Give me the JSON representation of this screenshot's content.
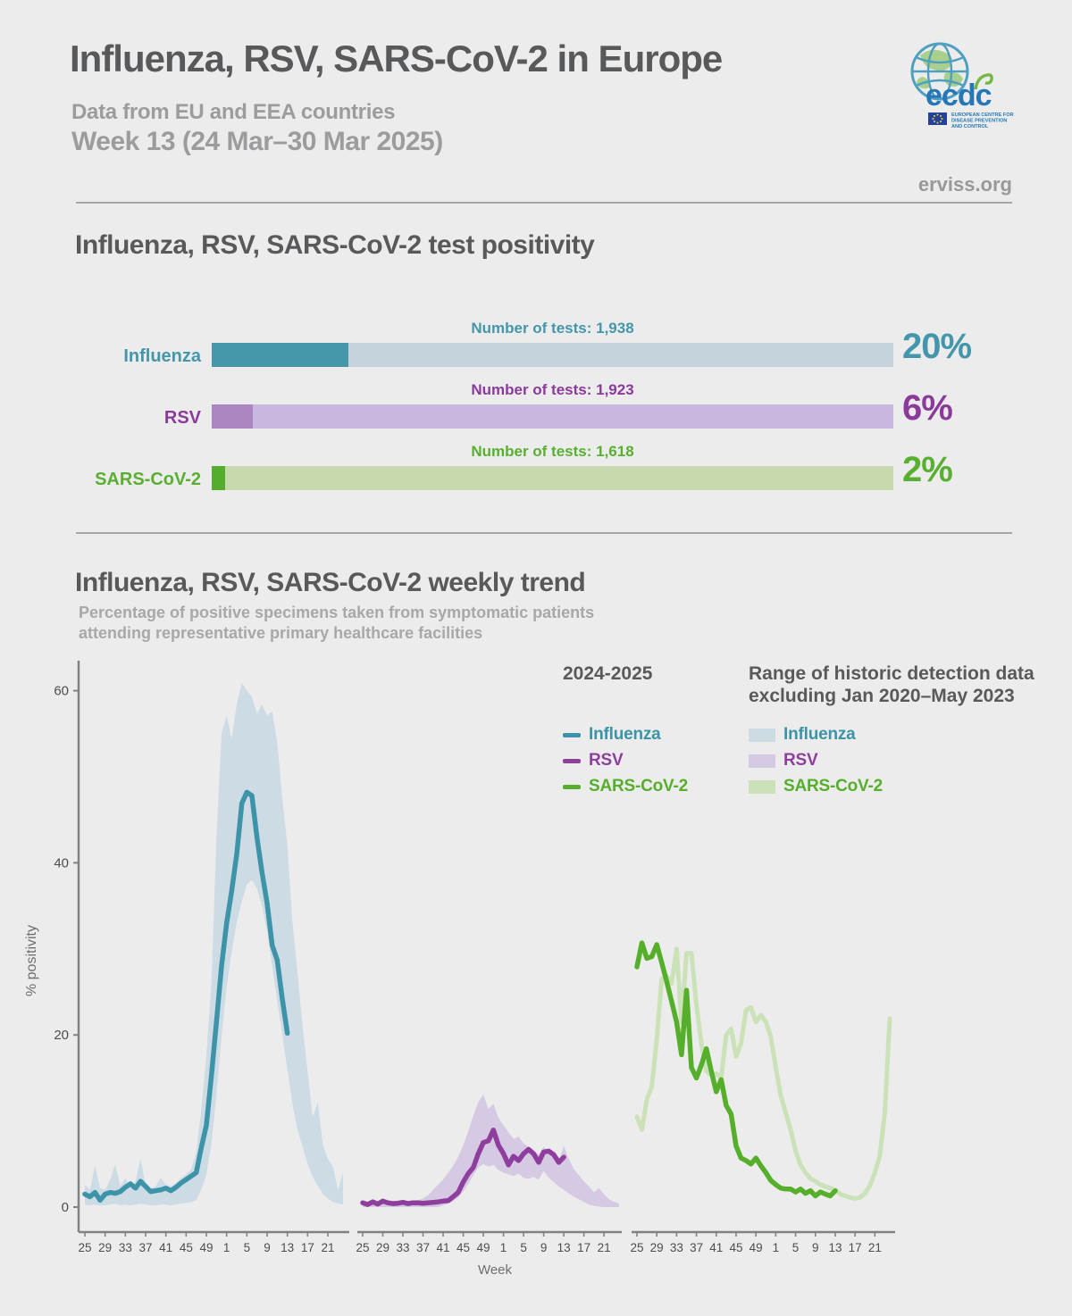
{
  "header": {
    "title": "Influenza, RSV, SARS-CoV-2 in Europe",
    "subtitle": "Data from EU and EEA countries",
    "week_line": "Week 13 (24 Mar–30 Mar 2025)",
    "site": "erviss.org",
    "logo": {
      "text": "ecdc",
      "org_lines": [
        "EUROPEAN CENTRE FOR",
        "DISEASE PREVENTION",
        "AND CONTROL"
      ]
    }
  },
  "positivity": {
    "heading": "Influenza, RSV, SARS-CoV-2 test positivity",
    "rows": [
      {
        "label": "Influenza",
        "tests_label": "Number of tests: 1,938",
        "percent": 20,
        "percent_label": "20%",
        "fill": "#4797AB",
        "track": "#C5D3DD",
        "text_color": "#4496AA"
      },
      {
        "label": "RSV",
        "tests_label": "Number of tests: 1,923",
        "percent": 6,
        "percent_label": "6%",
        "fill": "#AC85C3",
        "track": "#C9B8DD",
        "text_color": "#8B3A9B"
      },
      {
        "label": "SARS-CoV-2",
        "tests_label": "Number of tests: 1,618",
        "percent": 2,
        "percent_label": "2%",
        "fill": "#55AD2D",
        "track": "#C7DAAE",
        "text_color": "#58AF30"
      }
    ]
  },
  "trend": {
    "heading": "Influenza, RSV, SARS-CoV-2 weekly trend",
    "subtitle_line1": "Percentage of positive specimens taken from symptomatic patients",
    "subtitle_line2": "attending representative primary healthcare facilities",
    "legend_current_title": "2024-2025",
    "legend_hist_title_line1": "Range of historic detection data",
    "legend_hist_title_line2": "excluding Jan 2020–May 2023"
  },
  "colors": {
    "background": "#ECECEC",
    "heading": "#58595B",
    "muted": "#9B9C9E",
    "axis": "#808285",
    "tick_text": "#4D4D4F"
  },
  "chart_data": {
    "type": "line",
    "title": "Influenza, RSV, SARS-CoV-2 weekly trend",
    "ylabel": "% positivity",
    "xlabel": "Week",
    "ylim": [
      0,
      63
    ],
    "yticks": [
      0,
      20,
      40,
      60
    ],
    "week_tick_labels": [
      25,
      29,
      33,
      37,
      41,
      45,
      49,
      1,
      5,
      9,
      13,
      17,
      21
    ],
    "weeks_start": 25,
    "weeks_per_panel": 52,
    "current_season_weeks": "week 25 (2024) through week 13 (2025)",
    "panels": [
      {
        "virus": "Influenza",
        "line_color": "#3D93A8",
        "band_color": "#CDDBE5",
        "current": [
          1.5,
          1.2,
          1.7,
          0.8,
          1.5,
          1.7,
          1.6,
          1.8,
          2.3,
          2.7,
          2.2,
          3.0,
          2.4,
          1.8,
          1.9,
          2.0,
          2.2,
          1.9,
          2.3,
          2.8,
          3.2,
          3.6,
          4.0,
          6.9,
          9.5,
          15.3,
          21.5,
          28.0,
          33.0,
          36.7,
          41.0,
          46.9,
          48.2,
          47.8,
          42.9,
          38.9,
          35.3,
          30.4,
          28.7,
          24.2,
          20.2
        ],
        "hist_upper": [
          2.6,
          2.0,
          4.8,
          2.2,
          2.0,
          3.2,
          5.0,
          2.4,
          3.4,
          2.2,
          3.0,
          5.6,
          2.6,
          2.2,
          2.4,
          3.4,
          2.6,
          2.4,
          2.8,
          3.4,
          3.8,
          4.4,
          6.4,
          11.3,
          17.6,
          26.0,
          42.9,
          55.0,
          57.1,
          54.4,
          58.4,
          60.9,
          60.0,
          59.3,
          57.3,
          58.4,
          57.1,
          57.6,
          54.0,
          47.5,
          42.0,
          33.1,
          27.3,
          21.0,
          15.8,
          10.4,
          12.2,
          7.3,
          5.6,
          4.7,
          2.0,
          4.0
        ],
        "hist_lower": [
          0.3,
          0.2,
          0.3,
          0.2,
          0.2,
          0.3,
          0.4,
          0.2,
          0.3,
          0.2,
          0.3,
          0.4,
          0.3,
          0.2,
          0.2,
          0.3,
          0.3,
          0.2,
          0.3,
          0.4,
          0.5,
          0.6,
          0.8,
          2.0,
          3.8,
          7.3,
          13.1,
          19.8,
          25.6,
          29.6,
          33.1,
          35.5,
          37.5,
          38.0,
          37.0,
          35.0,
          32.0,
          28.0,
          24.0,
          20.0,
          16.0,
          12.0,
          9.0,
          7.0,
          5.0,
          3.5,
          2.5,
          1.5,
          1.0,
          0.6,
          0.4,
          0.3
        ]
      },
      {
        "virus": "RSV",
        "line_color": "#8E3F9E",
        "band_color": "#D6C9E3",
        "current": [
          0.5,
          0.3,
          0.6,
          0.35,
          0.7,
          0.5,
          0.4,
          0.45,
          0.55,
          0.4,
          0.5,
          0.5,
          0.45,
          0.5,
          0.55,
          0.6,
          0.7,
          0.75,
          1.2,
          1.7,
          2.9,
          3.9,
          4.6,
          6.2,
          7.5,
          7.7,
          8.95,
          7.2,
          6.2,
          4.9,
          5.9,
          5.4,
          6.2,
          6.7,
          6.2,
          5.2,
          6.4,
          6.5,
          6.1,
          5.2,
          5.8
        ],
        "hist_upper": [
          0.6,
          0.5,
          0.7,
          0.6,
          0.7,
          0.6,
          0.6,
          0.7,
          0.6,
          0.7,
          0.7,
          0.8,
          1.0,
          1.4,
          2.0,
          2.6,
          3.2,
          4.0,
          4.8,
          5.8,
          7.2,
          8.8,
          10.6,
          12.2,
          13.1,
          11.4,
          12.0,
          10.4,
          9.5,
          8.7,
          7.9,
          8.2,
          7.4,
          7.0,
          6.5,
          6.1,
          7.0,
          6.3,
          5.6,
          5.3,
          7.1,
          5.6,
          4.4,
          3.7,
          3.0,
          2.4,
          1.7,
          2.2,
          1.5,
          0.9,
          0.6,
          0.4
        ],
        "hist_lower": [
          0,
          0,
          0,
          0,
          0,
          0,
          0,
          0,
          0,
          0,
          0,
          0,
          0,
          0,
          0,
          0,
          0.2,
          0.4,
          0.7,
          1.1,
          1.8,
          2.7,
          3.7,
          4.6,
          5.0,
          4.7,
          4.9,
          4.3,
          4.0,
          3.8,
          3.6,
          3.9,
          3.4,
          3.3,
          3.5,
          3.2,
          4.2,
          3.4,
          2.9,
          2.4,
          2.0,
          1.6,
          1.2,
          0.9,
          0.6,
          0.3,
          0.15,
          0.05,
          0,
          0,
          0,
          0
        ]
      },
      {
        "virus": "SARS-CoV-2",
        "line_color": "#55AF2B",
        "band_color": "#CBE2B8",
        "current": [
          27.9,
          30.7,
          28.9,
          29.1,
          30.5,
          28.4,
          26.2,
          23.9,
          21.5,
          17.7,
          25.2,
          16.2,
          15.0,
          16.5,
          18.4,
          15.8,
          13.4,
          14.8,
          11.8,
          10.8,
          7.1,
          5.7,
          5.4,
          5.0,
          5.7,
          4.8,
          4.0,
          3.1,
          2.6,
          2.2,
          2.1,
          2.1,
          1.75,
          2.1,
          1.6,
          1.9,
          1.3,
          1.75,
          1.5,
          1.3,
          1.9
        ],
        "hist_line": [
          10.5,
          9.0,
          12.5,
          14.0,
          19.5,
          26.5,
          26.8,
          26.0,
          30.0,
          21.5,
          29.5,
          29.5,
          23.5,
          19.0,
          15.8,
          15.3,
          15.5,
          15.0,
          20.0,
          20.7,
          17.5,
          19.0,
          22.9,
          23.2,
          21.5,
          22.3,
          21.5,
          19.8,
          16.2,
          13.0,
          11.0,
          9.0,
          6.5,
          4.9,
          4.0,
          3.3,
          3.0,
          2.6,
          2.4,
          2.2,
          2.0,
          1.5,
          1.3,
          1.1,
          1.0,
          1.1,
          1.6,
          2.5,
          4.0,
          6.0,
          11.0,
          21.9
        ]
      }
    ],
    "legend": {
      "current_title": "2024-2025",
      "historic_title": "Range of historic detection data excluding Jan 2020–May 2023",
      "entries": [
        "Influenza",
        "RSV",
        "SARS-CoV-2"
      ]
    }
  }
}
